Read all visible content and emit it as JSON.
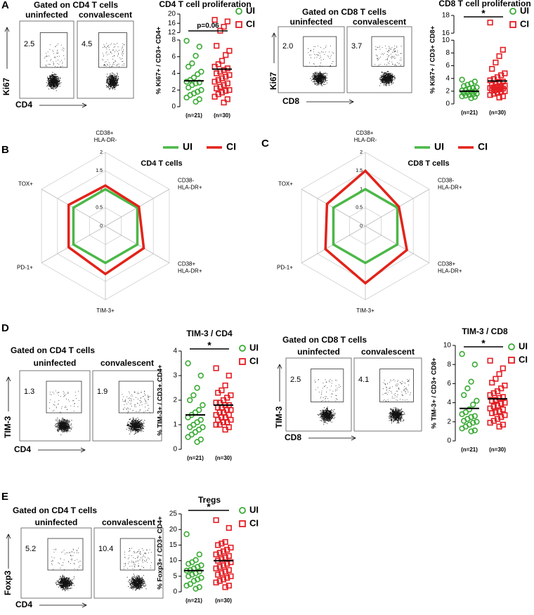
{
  "panel_labels": [
    "A",
    "B",
    "C",
    "D",
    "E"
  ],
  "flow_plots": [
    {
      "title": "Gated on CD4 T cells",
      "groups": [
        "uninfected",
        "convalescent"
      ],
      "gates": [
        "2.5",
        "4.5"
      ],
      "y_label": "Ki67",
      "x_label": "CD4"
    },
    {
      "title": "Gated on CD8 T cells",
      "groups": [
        "uninfected",
        "convalescent"
      ],
      "gates": [
        "2.0",
        "3.7"
      ],
      "y_label": "Ki67",
      "x_label": "CD8"
    },
    {
      "title": "Gated on CD4 T cells",
      "groups": [
        "uninfected",
        "convalescent"
      ],
      "gates": [
        "1.3",
        "1.9"
      ],
      "y_label": "TIM-3",
      "x_label": "CD4"
    },
    {
      "title": "Gated on CD8 T cells",
      "groups": [
        "uninfected",
        "convalescent"
      ],
      "gates": [
        "2.5",
        "4.1"
      ],
      "y_label": "TIM-3",
      "x_label": "CD8"
    },
    {
      "title": "Gated on CD4 T cells",
      "groups": [
        "uninfected",
        "convalescent"
      ],
      "gates": [
        "5.2",
        "10.4"
      ],
      "y_label": "Foxp3",
      "x_label": "CD4"
    }
  ],
  "chart_data": [
    {
      "type": "strip",
      "title": "CD4 T cell proliferation",
      "y_label": "% Ki67+ / CD3+ CD4+",
      "categories": [
        "(n=21)",
        "(n=30)"
      ],
      "ylim": [
        0,
        20
      ],
      "yticks": [
        0,
        2,
        4,
        6,
        8,
        12,
        16,
        20
      ],
      "ybreak": [
        8,
        12
      ],
      "annotation": "p=0.06",
      "series": [
        {
          "name": "UI",
          "color": "#3aaa35",
          "marker": "circle",
          "mean": 3.1,
          "values": [
            7.9,
            7.2,
            6.1,
            5.2,
            4.8,
            4.2,
            3.9,
            3.5,
            3.2,
            3.0,
            2.9,
            2.8,
            2.6,
            2.3,
            2.0,
            1.8,
            1.6,
            1.4,
            1.1,
            0.9,
            0.6
          ]
        },
        {
          "name": "CI",
          "color": "#e31e24",
          "marker": "square",
          "mean": 4.5,
          "values": [
            17.5,
            16.8,
            14.5,
            12.8,
            7.3,
            6.7,
            6.2,
            5.5,
            5.1,
            4.8,
            4.6,
            4.4,
            4.2,
            4.0,
            3.8,
            3.6,
            3.4,
            3.2,
            3.0,
            2.8,
            2.6,
            2.4,
            2.2,
            2.0,
            1.9,
            1.7,
            1.5,
            1.2,
            0.9,
            0.5
          ]
        }
      ]
    },
    {
      "type": "strip",
      "title": "CD8 T cell proliferation",
      "y_label": "% Ki67+ / CD3+ CD8+",
      "categories": [
        "(n=21)",
        "(n=30)"
      ],
      "ylim": [
        0,
        18
      ],
      "yticks": [
        0,
        2,
        4,
        6,
        8,
        10,
        16,
        18
      ],
      "ybreak": [
        10,
        16
      ],
      "annotation": "*",
      "series": [
        {
          "name": "UI",
          "color": "#3aaa35",
          "marker": "circle",
          "mean": 2.0,
          "values": [
            3.8,
            3.5,
            3.2,
            3.0,
            2.8,
            2.6,
            2.5,
            2.4,
            2.2,
            2.1,
            2.0,
            1.9,
            1.8,
            1.7,
            1.6,
            1.5,
            1.4,
            1.3,
            1.2,
            1.1,
            0.9
          ]
        },
        {
          "name": "CI",
          "color": "#e31e24",
          "marker": "square",
          "mean": 3.6,
          "values": [
            17.2,
            8.5,
            7.5,
            6.5,
            5.5,
            4.8,
            4.5,
            4.2,
            3.9,
            3.7,
            3.5,
            3.3,
            3.1,
            3.0,
            2.9,
            2.8,
            2.7,
            2.6,
            2.5,
            2.4,
            2.3,
            2.2,
            2.1,
            2.0,
            1.9,
            1.8,
            1.6,
            1.4,
            1.2,
            1.0
          ]
        }
      ]
    },
    {
      "type": "radar",
      "title": "CD4 T cells",
      "categories": [
        "CD38+ HLA-DR-",
        "CD38- HLA-DR+",
        "CD38+ HLA-DR+",
        "TIM-3+",
        "PD-1+",
        "TOX+"
      ],
      "ylim": [
        0,
        2
      ],
      "yticks": [
        0,
        0.5,
        1,
        1.5,
        2
      ],
      "series": [
        {
          "name": "UI",
          "color": "#4cb848",
          "values": [
            1,
            1,
            1,
            1,
            1,
            1
          ]
        },
        {
          "name": "CI",
          "color": "#e2231a",
          "values": [
            1.1,
            1.05,
            1.2,
            1.3,
            1.15,
            1.15
          ]
        }
      ]
    },
    {
      "type": "radar",
      "title": "CD8 T cells",
      "categories": [
        "CD38+ HLA-DR-",
        "CD38- HLA-DR+",
        "CD38+ HLA-DR+",
        "TIM-3+",
        "PD-1+",
        "TOX+"
      ],
      "ylim": [
        0,
        2
      ],
      "yticks": [
        0,
        0.5,
        1,
        1.5,
        2
      ],
      "series": [
        {
          "name": "UI",
          "color": "#4cb848",
          "values": [
            1,
            1,
            1,
            1,
            1,
            1
          ]
        },
        {
          "name": "CI",
          "color": "#e2231a",
          "values": [
            1.5,
            1.05,
            1.3,
            1.55,
            1.25,
            1.2
          ]
        }
      ]
    },
    {
      "type": "strip",
      "title": "TIM-3 / CD4",
      "y_label": "% TIM-3+ / CD3+ CD4+",
      "categories": [
        "(n=21)",
        "(n=30)"
      ],
      "ylim": [
        0,
        4
      ],
      "yticks": [
        0,
        1,
        2,
        3,
        4
      ],
      "annotation": "*",
      "series": [
        {
          "name": "UI",
          "color": "#3aaa35",
          "marker": "circle",
          "mean": 1.4,
          "values": [
            3.5,
            3.0,
            2.5,
            2.2,
            2.0,
            1.8,
            1.6,
            1.5,
            1.4,
            1.3,
            1.2,
            1.1,
            1.0,
            0.9,
            0.9,
            0.8,
            0.7,
            0.6,
            0.5,
            0.4,
            0.3
          ]
        },
        {
          "name": "CI",
          "color": "#e31e24",
          "marker": "square",
          "mean": 1.8,
          "values": [
            3.3,
            3.0,
            2.6,
            2.4,
            2.3,
            2.2,
            2.1,
            2.0,
            1.9,
            1.9,
            1.8,
            1.8,
            1.7,
            1.7,
            1.6,
            1.6,
            1.5,
            1.5,
            1.4,
            1.4,
            1.3,
            1.3,
            1.2,
            1.2,
            1.1,
            1.1,
            1.0,
            1.0,
            0.9,
            0.8
          ]
        }
      ]
    },
    {
      "type": "strip",
      "title": "TIM-3 / CD8",
      "y_label": "% TIM-3+ / CD3+ CD8+",
      "categories": [
        "(n=21)",
        "(n=30)"
      ],
      "ylim": [
        0,
        10
      ],
      "yticks": [
        0,
        2,
        4,
        6,
        8,
        10
      ],
      "annotation": "*",
      "series": [
        {
          "name": "UI",
          "color": "#3aaa35",
          "marker": "circle",
          "mean": 3.4,
          "values": [
            9.1,
            8.0,
            6.2,
            5.5,
            4.8,
            4.2,
            3.8,
            3.3,
            3.0,
            2.8,
            2.6,
            2.5,
            2.3,
            2.1,
            2.0,
            1.9,
            1.7,
            1.5,
            1.3,
            1.1,
            1.0
          ]
        },
        {
          "name": "CI",
          "color": "#e31e24",
          "marker": "square",
          "mean": 4.4,
          "values": [
            8.4,
            7.6,
            7.0,
            6.5,
            6.1,
            5.8,
            5.5,
            5.2,
            5.0,
            4.8,
            4.6,
            4.5,
            4.3,
            4.2,
            4.0,
            3.9,
            3.7,
            3.6,
            3.4,
            3.3,
            3.1,
            3.0,
            2.9,
            2.7,
            2.5,
            2.3,
            2.1,
            1.9,
            1.7,
            1.5
          ]
        }
      ]
    },
    {
      "type": "strip",
      "title": "Tregs",
      "y_label": "% Foxp3+ / CD3+ CD4+",
      "categories": [
        "(n=21)",
        "(n=30)"
      ],
      "ylim": [
        0,
        25
      ],
      "yticks": [
        0,
        5,
        10,
        15,
        20,
        25
      ],
      "annotation": "*",
      "series": [
        {
          "name": "UI",
          "color": "#3aaa35",
          "marker": "circle",
          "mean": 6.8,
          "values": [
            18.5,
            12.0,
            10.2,
            9.5,
            9.0,
            8.5,
            8.0,
            7.5,
            7.0,
            6.8,
            6.5,
            6.0,
            5.5,
            5.0,
            4.5,
            4.0,
            3.5,
            2.5,
            2.0,
            1.5,
            1.0
          ]
        },
        {
          "name": "CI",
          "color": "#e31e24",
          "marker": "square",
          "mean": 10.0,
          "values": [
            23.0,
            20.5,
            16.0,
            15.5,
            15.0,
            14.2,
            13.5,
            13.0,
            12.5,
            12.0,
            11.5,
            11.0,
            10.5,
            10.0,
            9.5,
            9.0,
            8.5,
            8.0,
            7.5,
            7.0,
            6.5,
            6.0,
            5.5,
            5.0,
            4.5,
            4.0,
            3.5,
            3.0,
            2.0,
            1.5
          ]
        }
      ]
    }
  ]
}
